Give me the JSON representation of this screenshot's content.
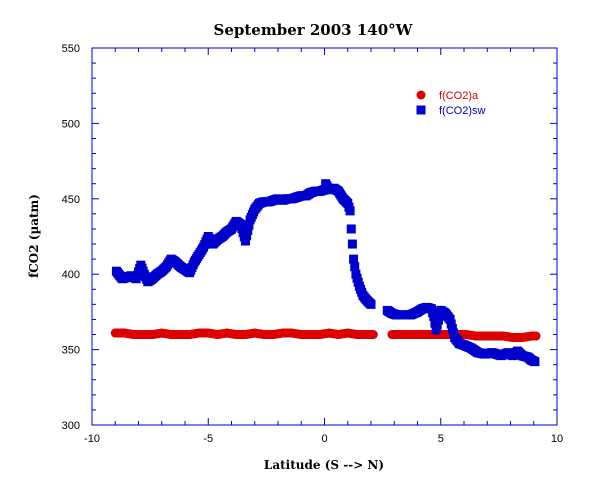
{
  "chart_data": {
    "type": "scatter",
    "title": "September 2003 140°W",
    "xlabel": "Latitude (S --> N)",
    "ylabel": "fCO2 (µatm)",
    "xlim": [
      -10,
      10
    ],
    "ylim": [
      300,
      550
    ],
    "x_ticks": [
      -10,
      -5,
      0,
      5,
      10
    ],
    "y_ticks": [
      300,
      350,
      400,
      450,
      500,
      550
    ],
    "x_tick_labels": [
      "-10",
      "-5",
      "0",
      "5",
      "10"
    ],
    "y_tick_labels": [
      "300",
      "350",
      "400",
      "450",
      "500",
      "550"
    ],
    "legend_position": "top-right",
    "grid": false,
    "series": [
      {
        "name": "f(CO2)a",
        "marker": "circle",
        "color": "#dd0000",
        "points": [
          [
            -9.0,
            361
          ],
          [
            -8.6,
            361
          ],
          [
            -8.2,
            360
          ],
          [
            -7.8,
            360
          ],
          [
            -7.4,
            360
          ],
          [
            -7.0,
            361
          ],
          [
            -6.6,
            360
          ],
          [
            -6.2,
            360
          ],
          [
            -5.8,
            360
          ],
          [
            -5.4,
            361
          ],
          [
            -5.0,
            361
          ],
          [
            -4.6,
            360
          ],
          [
            -4.2,
            361
          ],
          [
            -3.8,
            360
          ],
          [
            -3.4,
            360
          ],
          [
            -3.0,
            361
          ],
          [
            -2.6,
            360
          ],
          [
            -2.2,
            360
          ],
          [
            -1.8,
            361
          ],
          [
            -1.4,
            361
          ],
          [
            -1.0,
            360
          ],
          [
            -0.6,
            360
          ],
          [
            -0.2,
            360
          ],
          [
            0.2,
            361
          ],
          [
            0.6,
            360
          ],
          [
            1.0,
            361
          ],
          [
            1.4,
            360
          ],
          [
            1.8,
            360
          ],
          [
            2.1,
            360
          ],
          [
            2.9,
            360
          ],
          [
            3.3,
            360
          ],
          [
            3.7,
            360
          ],
          [
            4.1,
            360
          ],
          [
            4.5,
            360
          ],
          [
            4.9,
            360
          ],
          [
            5.3,
            360
          ],
          [
            5.7,
            360
          ],
          [
            6.1,
            360
          ],
          [
            6.5,
            359
          ],
          [
            6.9,
            359
          ],
          [
            7.3,
            359
          ],
          [
            7.7,
            359
          ],
          [
            8.1,
            358
          ],
          [
            8.5,
            358
          ],
          [
            8.9,
            359
          ],
          [
            9.1,
            359
          ]
        ]
      },
      {
        "name": "f(CO2)sw",
        "marker": "square",
        "color": "#0000cc",
        "points": [
          [
            -8.95,
            402
          ],
          [
            -8.7,
            397
          ],
          [
            -8.5,
            398
          ],
          [
            -8.3,
            399
          ],
          [
            -8.1,
            397
          ],
          [
            -7.9,
            406
          ],
          [
            -7.75,
            400
          ],
          [
            -7.6,
            395
          ],
          [
            -7.4,
            397
          ],
          [
            -7.2,
            400
          ],
          [
            -7.0,
            402
          ],
          [
            -6.8,
            405
          ],
          [
            -6.6,
            410
          ],
          [
            -6.4,
            408
          ],
          [
            -6.2,
            405
          ],
          [
            -6.0,
            403
          ],
          [
            -5.8,
            401
          ],
          [
            -5.6,
            408
          ],
          [
            -5.4,
            413
          ],
          [
            -5.2,
            418
          ],
          [
            -5.0,
            425
          ],
          [
            -4.8,
            420
          ],
          [
            -4.6,
            423
          ],
          [
            -4.4,
            425
          ],
          [
            -4.2,
            428
          ],
          [
            -4.0,
            430
          ],
          [
            -3.8,
            435
          ],
          [
            -3.6,
            433
          ],
          [
            -3.4,
            422
          ],
          [
            -3.2,
            436
          ],
          [
            -3.0,
            443
          ],
          [
            -2.8,
            447
          ],
          [
            -2.6,
            448
          ],
          [
            -2.4,
            448
          ],
          [
            -2.2,
            449
          ],
          [
            -2.0,
            450
          ],
          [
            -1.8,
            449
          ],
          [
            -1.6,
            450
          ],
          [
            -1.4,
            450
          ],
          [
            -1.2,
            451
          ],
          [
            -1.0,
            452
          ],
          [
            -0.8,
            452
          ],
          [
            -0.6,
            454
          ],
          [
            -0.4,
            455
          ],
          [
            -0.2,
            455
          ],
          [
            0.0,
            456
          ],
          [
            0.05,
            460
          ],
          [
            0.2,
            456
          ],
          [
            0.4,
            457
          ],
          [
            0.6,
            455
          ],
          [
            0.8,
            450
          ],
          [
            1.0,
            447
          ],
          [
            1.1,
            442
          ],
          [
            1.15,
            430
          ],
          [
            1.2,
            420
          ],
          [
            1.25,
            410
          ],
          [
            1.35,
            400
          ],
          [
            1.5,
            392
          ],
          [
            1.65,
            386
          ],
          [
            1.8,
            383
          ],
          [
            2.0,
            380
          ],
          [
            2.7,
            376
          ],
          [
            2.9,
            374
          ],
          [
            3.1,
            373
          ],
          [
            3.4,
            373
          ],
          [
            3.7,
            373
          ],
          [
            4.0,
            375
          ],
          [
            4.2,
            377
          ],
          [
            4.4,
            378
          ],
          [
            4.6,
            377
          ],
          [
            4.7,
            372
          ],
          [
            4.8,
            363
          ],
          [
            5.0,
            376
          ],
          [
            5.2,
            374
          ],
          [
            5.4,
            370
          ],
          [
            5.6,
            358
          ],
          [
            5.8,
            354
          ],
          [
            6.0,
            353
          ],
          [
            6.3,
            351
          ],
          [
            6.6,
            348
          ],
          [
            6.9,
            347
          ],
          [
            7.2,
            348
          ],
          [
            7.6,
            346
          ],
          [
            7.9,
            348
          ],
          [
            8.1,
            346
          ],
          [
            8.3,
            349
          ],
          [
            8.5,
            346
          ],
          [
            8.75,
            345
          ],
          [
            8.9,
            343
          ],
          [
            9.05,
            342
          ]
        ]
      }
    ]
  }
}
